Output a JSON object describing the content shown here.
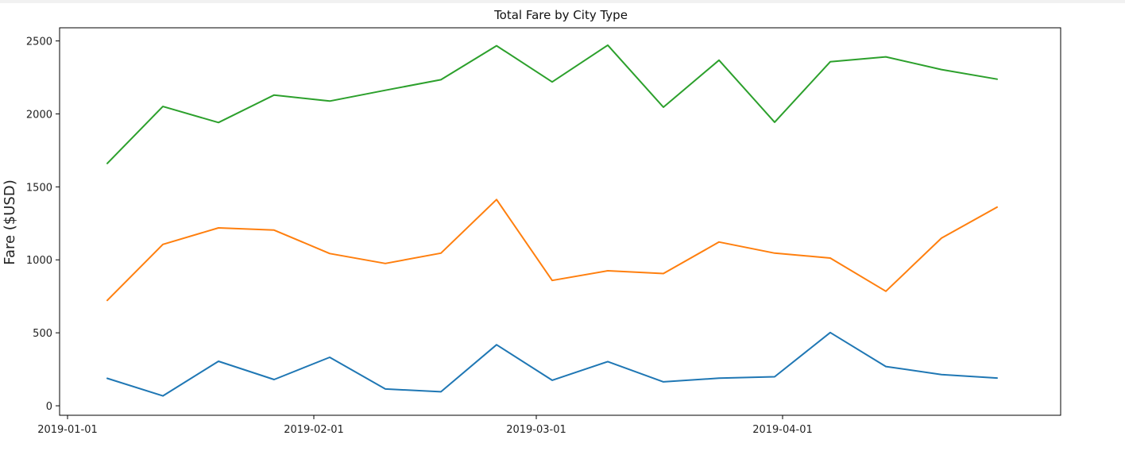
{
  "chart_data": {
    "type": "line",
    "title": "Total Fare by City Type",
    "xlabel": "",
    "ylabel": "Fare ($USD)",
    "x": [
      "2019-01-06",
      "2019-01-13",
      "2019-01-20",
      "2019-01-27",
      "2019-02-03",
      "2019-02-10",
      "2019-02-17",
      "2019-02-24",
      "2019-03-03",
      "2019-03-10",
      "2019-03-17",
      "2019-03-24",
      "2019-03-31",
      "2019-04-07",
      "2019-04-14",
      "2019-04-21",
      "2019-04-28"
    ],
    "xlim": [
      "2018-12-31",
      "2019-05-06"
    ],
    "ylim": [
      -65,
      2590
    ],
    "xticks": [
      {
        "value": "2019-01-01",
        "label": "2019-01-01"
      },
      {
        "value": "2019-02-01",
        "label": "2019-02-01"
      },
      {
        "value": "2019-03-01",
        "label": "2019-03-01"
      },
      {
        "value": "2019-04-01",
        "label": "2019-04-01"
      }
    ],
    "yticks": [
      0,
      500,
      1000,
      1500,
      2000,
      2500
    ],
    "grid": false,
    "series": [
      {
        "color": "#1f77b4",
        "values": [
          188,
          68,
          305,
          180,
          332,
          115,
          96,
          418,
          175,
          303,
          164,
          189,
          199,
          502,
          269,
          214,
          190
        ]
      },
      {
        "color": "#ff7f0e",
        "values": [
          722,
          1106,
          1219,
          1204,
          1043,
          975,
          1046,
          1413,
          859,
          925,
          906,
          1122,
          1046,
          1012,
          785,
          1149,
          1361
        ]
      },
      {
        "color": "#2ca02c",
        "values": [
          1661,
          2051,
          1941,
          2129,
          2088,
          2162,
          2234,
          2467,
          2219,
          2471,
          2046,
          2368,
          1943,
          2357,
          2391,
          2304,
          2238
        ]
      }
    ]
  }
}
